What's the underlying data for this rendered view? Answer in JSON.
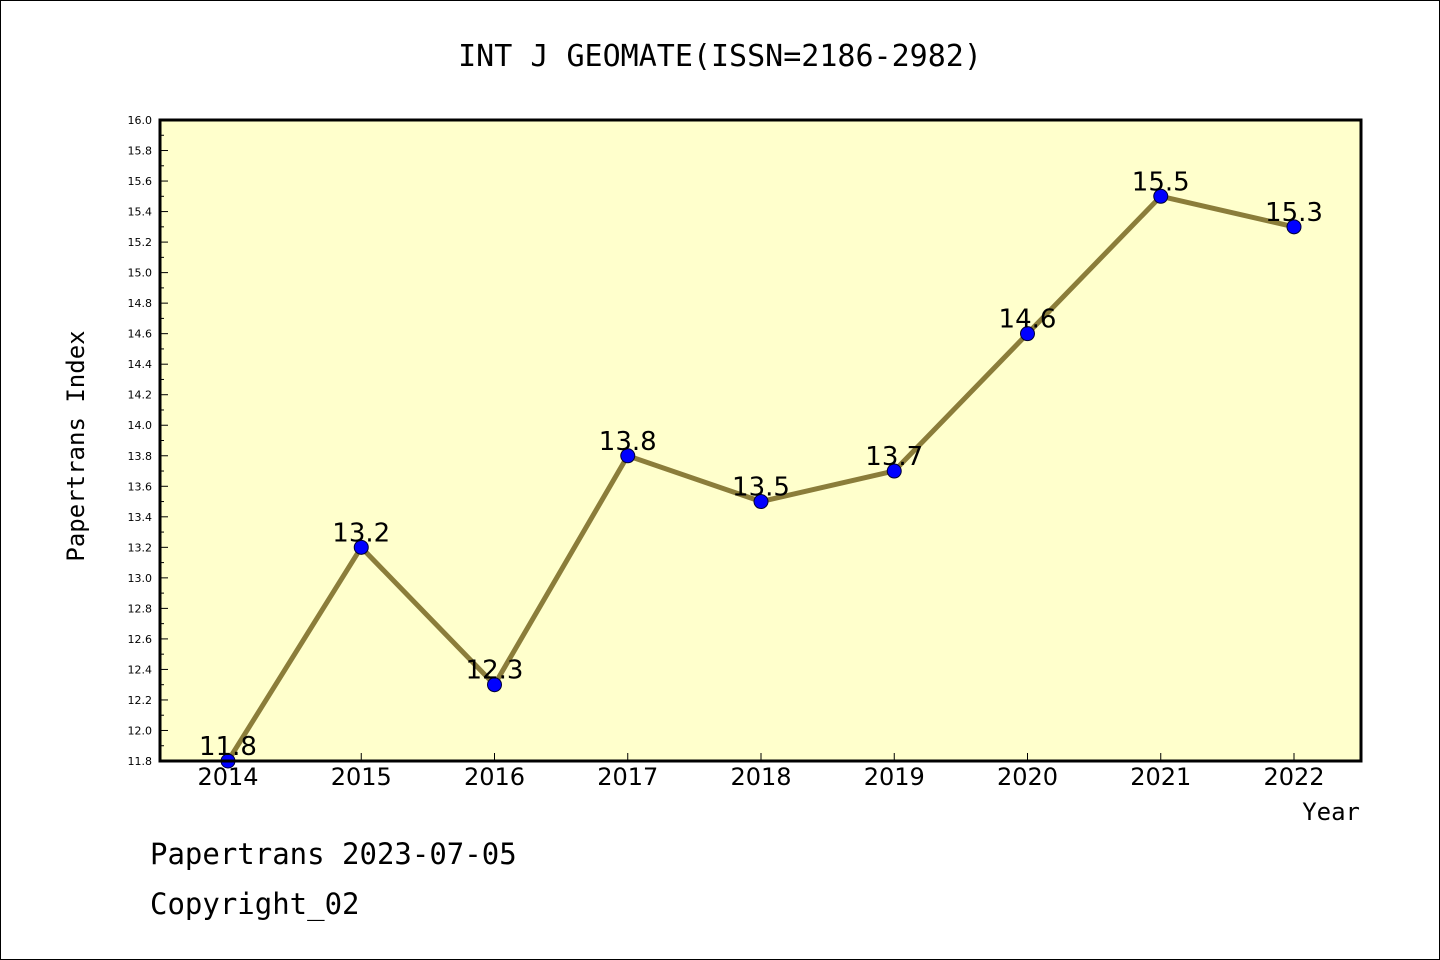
{
  "chart_data": {
    "type": "line",
    "title": "INT J GEOMATE(ISSN=2186-2982)",
    "xlabel": "Year",
    "ylabel": "Papertrans Index",
    "x": [
      "2014",
      "2015",
      "2016",
      "2017",
      "2018",
      "2019",
      "2020",
      "2021",
      "2022"
    ],
    "series": [
      {
        "values": [
          11.8,
          13.2,
          12.3,
          13.8,
          13.5,
          13.7,
          14.6,
          15.5,
          15.3
        ],
        "labels": [
          "11.8",
          "13.2",
          "12.3",
          "13.8",
          "13.5",
          "13.7",
          "14.6",
          "15.5",
          "15.3"
        ]
      }
    ],
    "ylim": [
      11.8,
      16.0
    ],
    "yticks": [
      "11.8",
      "12.0",
      "12.2",
      "12.4",
      "12.6",
      "12.8",
      "13.0",
      "13.2",
      "13.4",
      "13.6",
      "13.8",
      "14.0",
      "14.2",
      "14.4",
      "14.6",
      "14.8",
      "15.0",
      "15.2",
      "15.4",
      "15.6",
      "15.8",
      "16.0"
    ],
    "grid": false,
    "legend": "none",
    "colors": {
      "plot_background": "#ffffcc",
      "line": "#8b7d3a",
      "marker": "#0000ff",
      "axis": "#000000"
    }
  },
  "footer": {
    "line1": "Papertrans 2023-07-05",
    "line2": "Copyright_02"
  }
}
